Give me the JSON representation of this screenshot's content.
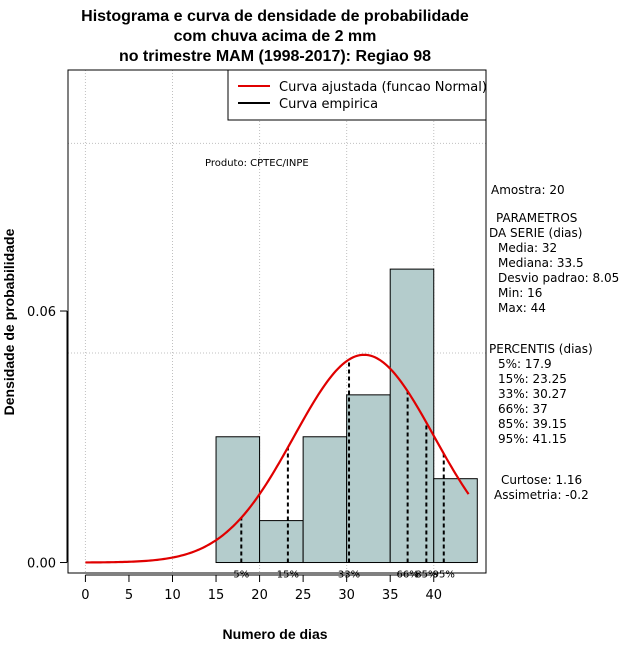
{
  "chart_data": {
    "type": "histogram",
    "title": [
      "Histograma e curva de densidade de probabilidade",
      "com chuva acima de 2 mm",
      "no trimestre MAM (1998-2017): Regiao 98"
    ],
    "xlabel": "Numero de dias",
    "ylabel": "Densidade de probabilidade",
    "xlim": [
      -2,
      46
    ],
    "ylim": [
      -0.0025,
      0.1175
    ],
    "x_ticks": [
      0,
      5,
      10,
      15,
      20,
      25,
      30,
      35,
      40
    ],
    "x_tick_labels": [
      "0",
      "5",
      "10",
      "15",
      "20",
      "25",
      "30",
      "35",
      "40"
    ],
    "y_ticks": [
      0.0,
      0.06
    ],
    "y_tick_labels": [
      "0.00",
      "0.06"
    ],
    "grid_x": [
      0,
      10,
      20,
      30,
      40
    ],
    "grid_y": [
      0.05,
      0.1
    ],
    "bins": [
      {
        "from": 15,
        "to": 20,
        "density": 0.03
      },
      {
        "from": 20,
        "to": 25,
        "density": 0.01
      },
      {
        "from": 25,
        "to": 30,
        "density": 0.03
      },
      {
        "from": 30,
        "to": 35,
        "density": 0.04
      },
      {
        "from": 35,
        "to": 40,
        "density": 0.07
      },
      {
        "from": 40,
        "to": 45,
        "density": 0.02
      }
    ],
    "fitted_curve": {
      "name": "Curva ajustada (funcao Normal)",
      "distribution": "normal",
      "mean": 32,
      "sd": 8.05,
      "x_range": [
        0,
        44
      ],
      "color": "#e00000"
    },
    "empirical_curve": {
      "name": "Curva empirica",
      "color": "#000000"
    },
    "percentile_lines": [
      {
        "label": "5%",
        "x": 17.9
      },
      {
        "label": "15%",
        "x": 23.25
      },
      {
        "label": "33%",
        "x": 30.27
      },
      {
        "label": "66%",
        "x": 37
      },
      {
        "label": "85%",
        "x": 39.15
      },
      {
        "label": "95%",
        "x": 41.15
      }
    ],
    "legend_position": "top-right",
    "annotation": "Produto: CPTEC/INPE",
    "colors": {
      "bar_fill": "#b4cccc",
      "grid": "#c0c0c0"
    }
  },
  "stats": {
    "amostra": "Amostra: 20",
    "param_title1": "PARAMETROS",
    "param_title2": "DA SERIE (dias)",
    "media": "Media: 32",
    "mediana": "Mediana: 33.5",
    "desvio": "Desvio padrao: 8.05",
    "min": "Min: 16",
    "max": "Max: 44",
    "percentis_title": "PERCENTIS (dias)",
    "p5": "5%: 17.9",
    "p15": "15%: 23.25",
    "p33": "33%: 30.27",
    "p66": "66%: 37",
    "p85": "85%: 39.15",
    "p95": "95%: 41.15",
    "curtose": "Curtose: 1.16",
    "assimetria": "Assimetria: -0.2"
  }
}
